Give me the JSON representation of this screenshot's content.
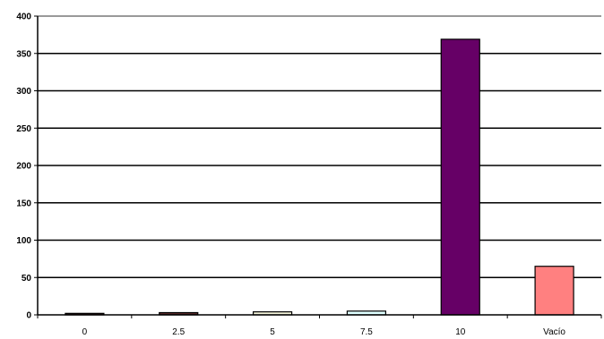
{
  "chart_data": {
    "type": "bar",
    "categories": [
      "0",
      "2.5",
      "5",
      "7.5",
      "10",
      "Vacío"
    ],
    "values": [
      2,
      3,
      4,
      5,
      369,
      65
    ],
    "bar_colors": [
      "#3a1a1a",
      "#5a2a2a",
      "#f5f5dc",
      "#e0ffff",
      "#660066",
      "#ff8080"
    ],
    "ylim": [
      0,
      400
    ],
    "yticks": [
      0,
      50,
      100,
      150,
      200,
      250,
      300,
      350,
      400
    ],
    "ytick_labels": [
      "0",
      "50",
      "100",
      "150",
      "200",
      "250",
      "300",
      "350",
      "400"
    ],
    "grid": true,
    "title": "",
    "xlabel": "",
    "ylabel": ""
  }
}
